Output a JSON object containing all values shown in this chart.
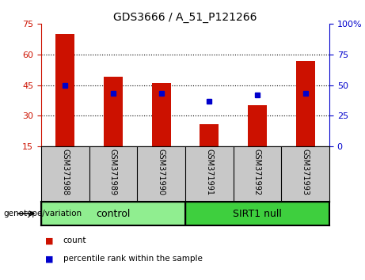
{
  "title": "GDS3666 / A_51_P121266",
  "samples": [
    "GSM371988",
    "GSM371989",
    "GSM371990",
    "GSM371991",
    "GSM371992",
    "GSM371993"
  ],
  "counts": [
    70,
    49,
    46,
    26,
    35,
    57
  ],
  "percentile_ranks": [
    50,
    43,
    43,
    37,
    42,
    43
  ],
  "groups": [
    {
      "label": "control",
      "indices": [
        0,
        1,
        2
      ],
      "color": "#90ee90"
    },
    {
      "label": "SIRT1 null",
      "indices": [
        3,
        4,
        5
      ],
      "color": "#3ecf3e"
    }
  ],
  "left_ylim": [
    15,
    75
  ],
  "right_ylim": [
    0,
    100
  ],
  "left_yticks": [
    15,
    30,
    45,
    60,
    75
  ],
  "right_yticks": [
    0,
    25,
    50,
    75,
    100
  ],
  "right_yticklabels": [
    "0",
    "25",
    "50",
    "75",
    "100%"
  ],
  "bar_color": "#cc1100",
  "dot_color": "#0000cc",
  "bg_color": "#ffffff",
  "label_bg": "#c8c8c8",
  "legend_count_label": "count",
  "legend_pct_label": "percentile rank within the sample",
  "genotype_label": "genotype/variation"
}
